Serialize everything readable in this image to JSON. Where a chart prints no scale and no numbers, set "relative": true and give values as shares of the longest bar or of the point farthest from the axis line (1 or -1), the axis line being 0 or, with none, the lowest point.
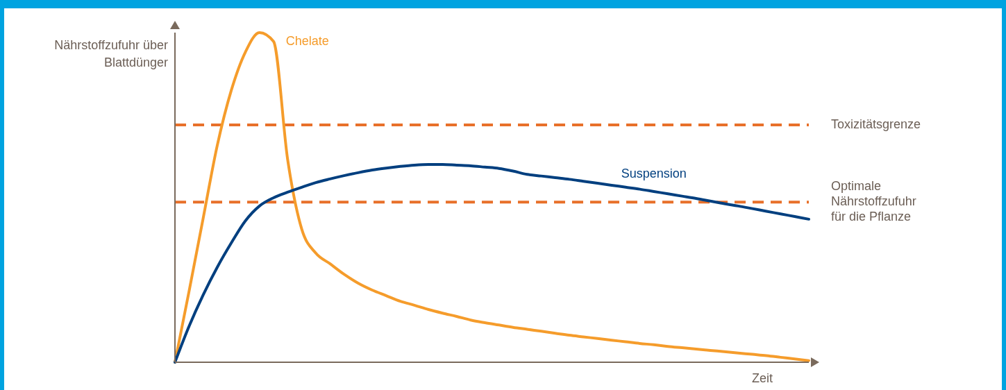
{
  "chart_data": {
    "type": "line",
    "relative": true,
    "xlabel": "Zeit",
    "ylabel": "Nährstoffzufuhr über Blattdünger",
    "grid": false,
    "legend": false,
    "marker": "none",
    "line_style": "solid",
    "categories": [
      null,
      null,
      null,
      null,
      null,
      null,
      null,
      null,
      null,
      null,
      null,
      null,
      null,
      null,
      null,
      null,
      null,
      null,
      null,
      null,
      null,
      null,
      null,
      null,
      null,
      null,
      null,
      null,
      null,
      null,
      null,
      null,
      null,
      null,
      null,
      null,
      null,
      null,
      null,
      null,
      null,
      null,
      null,
      null,
      null,
      null
    ],
    "series": [
      {
        "name": "Chelate",
        "color": "#f59c2b",
        "values": [
          0,
          0.215,
          0.436,
          0.657,
          0.825,
          0.941,
          1,
          0.973,
          0.615,
          0.404,
          0.331,
          0.299,
          0.267,
          0.24,
          0.219,
          0.202,
          0.185,
          0.173,
          0.16,
          0.149,
          0.139,
          0.128,
          0.12,
          0.113,
          0.106,
          0.1,
          0.094,
          0.088,
          0.082,
          0.077,
          0.072,
          0.067,
          0.062,
          0.057,
          0.053,
          0.048,
          0.044,
          0.04,
          0.036,
          0.032,
          0.028,
          0.024,
          0.02,
          0.015,
          0.01,
          0.005
        ]
      },
      {
        "name": "Suspension",
        "color": "#003f7f",
        "values": [
          0,
          0.109,
          0.204,
          0.288,
          0.362,
          0.429,
          0.474,
          0.499,
          0.516,
          0.531,
          0.545,
          0.556,
          0.566,
          0.575,
          0.583,
          0.589,
          0.594,
          0.598,
          0.6,
          0.6,
          0.598,
          0.596,
          0.592,
          0.588,
          0.58,
          0.57,
          0.565,
          0.56,
          0.555,
          0.549,
          0.543,
          0.537,
          0.531,
          0.525,
          0.518,
          0.511,
          0.504,
          0.497,
          0.489,
          0.481,
          0.474,
          0.466,
          0.458,
          0.45,
          0.442,
          0.434
        ]
      }
    ],
    "ref_lines": [
      {
        "axis": "y",
        "value": 0.72,
        "label": "Toxizitätsgrenze",
        "color": "#e8702a",
        "line_style": "dashed"
      },
      {
        "axis": "y",
        "value": 0.486,
        "label": "Optimale Nährstoffzufuhr für die Pflanze",
        "color": "#e8702a",
        "line_style": "dashed"
      }
    ]
  }
}
